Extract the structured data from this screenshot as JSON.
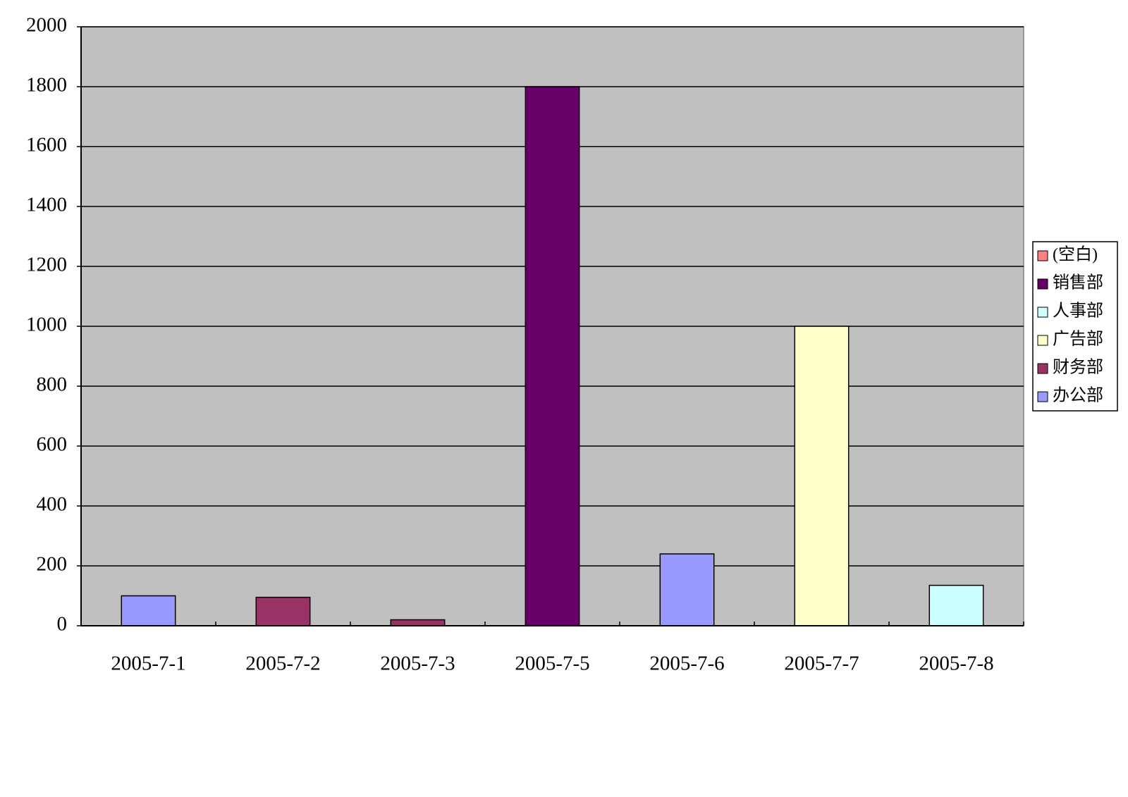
{
  "chart_data": {
    "type": "bar",
    "stacked": true,
    "categories": [
      "2005-7-1",
      "2005-7-2",
      "2005-7-3",
      "2005-7-5",
      "2005-7-6",
      "2005-7-7",
      "2005-7-8"
    ],
    "series": [
      {
        "name": "(空白)",
        "color": "#ff8080",
        "values": [
          null,
          null,
          null,
          null,
          null,
          null,
          null
        ]
      },
      {
        "name": "销售部",
        "color": "#660066",
        "values": [
          null,
          null,
          null,
          1800,
          null,
          null,
          null
        ]
      },
      {
        "name": "人事部",
        "color": "#ccffff",
        "values": [
          null,
          null,
          null,
          null,
          null,
          null,
          135
        ]
      },
      {
        "name": "广告部",
        "color": "#ffffcc",
        "values": [
          null,
          null,
          null,
          null,
          null,
          1000,
          null
        ]
      },
      {
        "name": "财务部",
        "color": "#993366",
        "values": [
          null,
          95,
          20,
          null,
          null,
          null,
          null
        ]
      },
      {
        "name": "办公部",
        "color": "#9999ff",
        "values": [
          100,
          null,
          null,
          null,
          240,
          null,
          null
        ]
      }
    ],
    "ylim": [
      0,
      2000
    ],
    "yticks": [
      0,
      200,
      400,
      600,
      800,
      1000,
      1200,
      1400,
      1600,
      1800,
      2000
    ],
    "grid": true,
    "legend": "right",
    "plot_background": "#c0c0c0"
  }
}
